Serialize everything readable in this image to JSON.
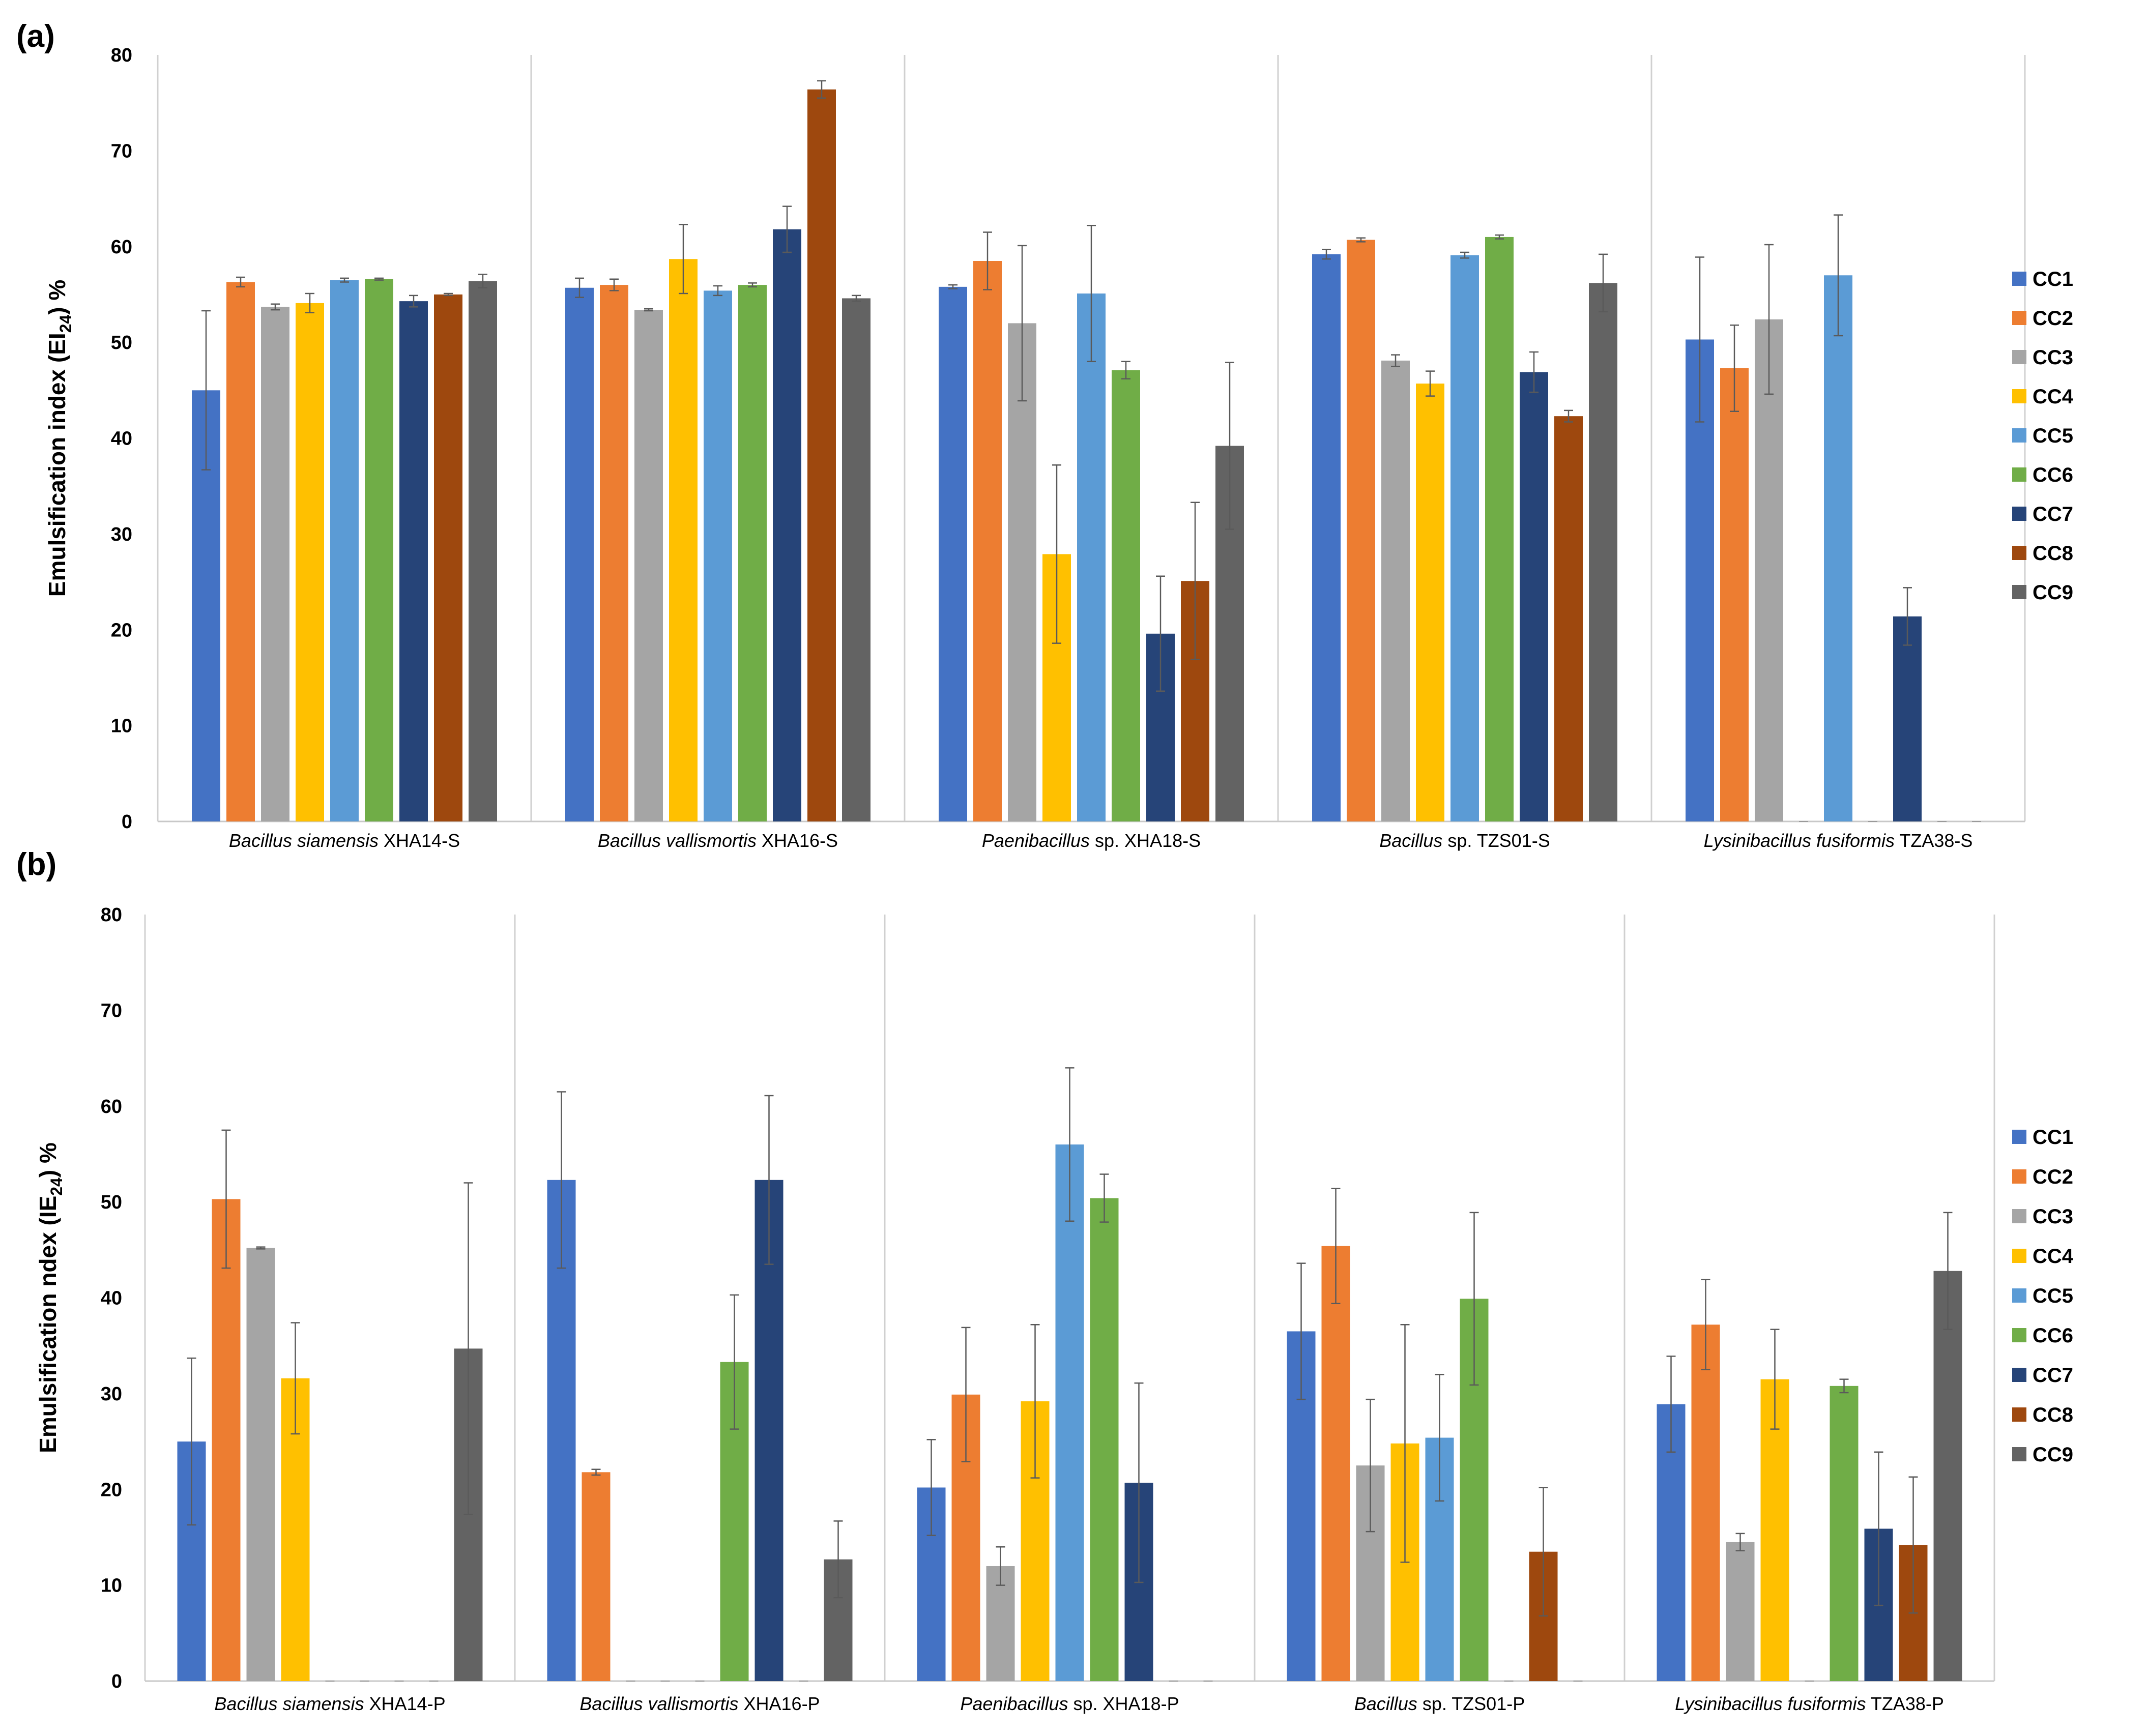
{
  "colors": {
    "CC1": "#4472C4",
    "CC2": "#ED7D31",
    "CC3": "#A5A5A5",
    "CC4": "#FFC000",
    "CC5": "#5B9BD5",
    "CC6": "#70AD47",
    "CC7": "#264478",
    "CC8": "#9E480E",
    "CC9": "#636363"
  },
  "chart_data": [
    {
      "type": "bar",
      "panel": "(a)",
      "ylabel_main": "Emulsification index (EI",
      "ylabel_sub": "24",
      "ylabel_end": ")  %",
      "ylim": [
        0,
        80
      ],
      "yticks": [
        0,
        10,
        20,
        30,
        40,
        50,
        60,
        70,
        80
      ],
      "legend": [
        "CC1",
        "CC2",
        "CC3",
        "CC4",
        "CC5",
        "CC6",
        "CC7",
        "CC8",
        "CC9"
      ],
      "categories": [
        {
          "italic": "Bacillus siamensis",
          "rest": " XHA14-S"
        },
        {
          "italic": "Bacillus vallismortis",
          "rest": " XHA16-S"
        },
        {
          "italic": "Paenibacillus",
          "rest": " sp. XHA18-S"
        },
        {
          "italic": "Bacillus",
          "rest": " sp. TZS01-S"
        },
        {
          "italic": "Lysinibacillus fusiformis",
          "rest": " TZA38-S"
        }
      ],
      "series": [
        {
          "name": "CC1",
          "values": [
            45.0,
            55.7,
            55.8,
            59.2,
            50.3
          ],
          "errors": [
            8.3,
            1.0,
            0.2,
            0.5,
            8.6
          ]
        },
        {
          "name": "CC2",
          "values": [
            56.3,
            56.0,
            58.5,
            60.7,
            47.3
          ],
          "errors": [
            0.5,
            0.6,
            3.0,
            0.2,
            4.5
          ]
        },
        {
          "name": "CC3",
          "values": [
            53.7,
            53.4,
            52.0,
            48.1,
            52.4
          ],
          "errors": [
            0.3,
            0.1,
            8.1,
            0.6,
            7.8
          ]
        },
        {
          "name": "CC4",
          "values": [
            54.1,
            58.7,
            27.9,
            45.7,
            0
          ],
          "errors": [
            1.0,
            3.6,
            9.3,
            1.3,
            0
          ]
        },
        {
          "name": "CC5",
          "values": [
            56.5,
            55.4,
            55.1,
            59.1,
            57.0
          ],
          "errors": [
            0.2,
            0.5,
            7.1,
            0.3,
            6.3
          ]
        },
        {
          "name": "CC6",
          "values": [
            56.6,
            56.0,
            47.1,
            61.0,
            0
          ],
          "errors": [
            0.1,
            0.2,
            0.9,
            0.2,
            0
          ]
        },
        {
          "name": "CC7",
          "values": [
            54.3,
            61.8,
            19.6,
            46.9,
            21.4
          ],
          "errors": [
            0.6,
            2.4,
            6.0,
            2.1,
            3.0
          ]
        },
        {
          "name": "CC8",
          "values": [
            55.0,
            76.4,
            25.1,
            42.3,
            0
          ],
          "errors": [
            0.1,
            0.9,
            8.2,
            0.6,
            0
          ]
        },
        {
          "name": "CC9",
          "values": [
            56.4,
            54.6,
            39.2,
            56.2,
            0
          ],
          "errors": [
            0.7,
            0.3,
            8.7,
            3.0,
            0
          ]
        }
      ]
    },
    {
      "type": "bar",
      "panel": "(b)",
      "ylabel_main": "Emulsification ndex (IE",
      "ylabel_sub": "24",
      "ylabel_end": ")  %",
      "ylim": [
        0,
        80
      ],
      "yticks": [
        0,
        10,
        20,
        30,
        40,
        50,
        60,
        70,
        80
      ],
      "legend": [
        "CC1",
        "CC2",
        "CC3",
        "CC4",
        "CC5",
        "CC6",
        "CC7",
        "CC8",
        "CC9"
      ],
      "categories": [
        {
          "italic": "Bacillus siamensis",
          "rest": " XHA14-P"
        },
        {
          "italic": "Bacillus vallismortis",
          "rest": " XHA16-P"
        },
        {
          "italic": "Paenibacillus",
          "rest": " sp. XHA18-P"
        },
        {
          "italic": "Bacillus",
          "rest": " sp. TZS01-P"
        },
        {
          "italic": "Lysinibacillus fusiformis",
          "rest": " TZA38-P"
        }
      ],
      "series": [
        {
          "name": "CC1",
          "values": [
            25.0,
            52.3,
            20.2,
            36.5,
            28.9
          ],
          "errors": [
            8.7,
            9.2,
            5.0,
            7.1,
            5.0
          ]
        },
        {
          "name": "CC2",
          "values": [
            50.3,
            21.8,
            29.9,
            45.4,
            37.2
          ],
          "errors": [
            7.2,
            0.3,
            7.0,
            6.0,
            4.7
          ]
        },
        {
          "name": "CC3",
          "values": [
            45.2,
            0,
            12.0,
            22.5,
            14.5
          ],
          "errors": [
            0.1,
            0,
            2.0,
            6.9,
            0.9
          ]
        },
        {
          "name": "CC4",
          "values": [
            31.6,
            0,
            29.2,
            24.8,
            31.5
          ],
          "errors": [
            5.8,
            0,
            8.0,
            12.4,
            5.2
          ]
        },
        {
          "name": "CC5",
          "values": [
            0,
            0,
            56.0,
            25.4,
            0
          ],
          "errors": [
            0,
            0,
            8.0,
            6.6,
            0
          ]
        },
        {
          "name": "CC6",
          "values": [
            0,
            33.3,
            50.4,
            39.9,
            30.8
          ],
          "errors": [
            0,
            7.0,
            2.5,
            9.0,
            0.7
          ]
        },
        {
          "name": "CC7",
          "values": [
            0,
            52.3,
            20.7,
            0,
            15.9
          ],
          "errors": [
            0,
            8.8,
            10.4,
            0,
            8.0
          ]
        },
        {
          "name": "CC8",
          "values": [
            0,
            0,
            0,
            13.5,
            14.2
          ],
          "errors": [
            0,
            0,
            0,
            6.7,
            7.1
          ]
        },
        {
          "name": "CC9",
          "values": [
            34.7,
            12.7,
            0,
            0,
            42.8
          ],
          "errors": [
            17.3,
            4.0,
            0,
            0,
            6.1
          ]
        }
      ]
    }
  ]
}
